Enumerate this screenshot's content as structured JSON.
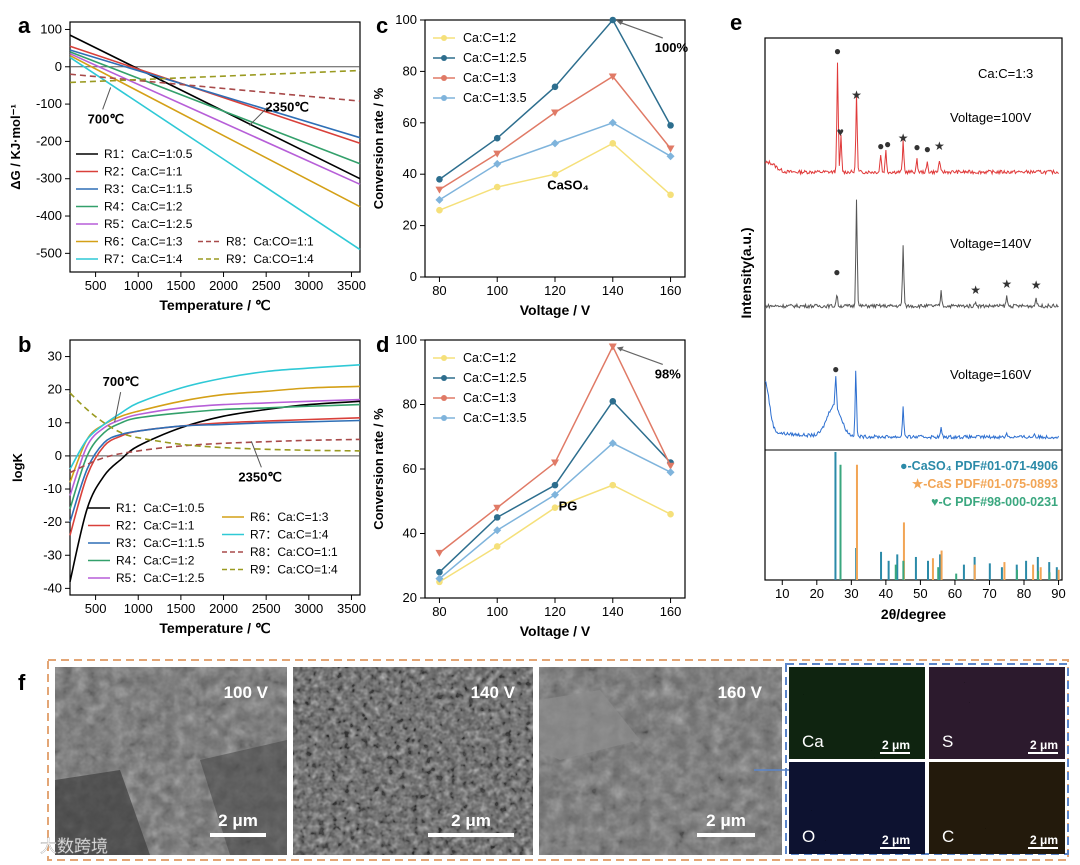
{
  "panel_labels": {
    "a": "a",
    "b": "b",
    "c": "c",
    "d": "d",
    "e": "e",
    "f": "f"
  },
  "chart_data": [
    {
      "id": "a",
      "type": "line",
      "xlabel": "Temperature / ℃",
      "ylabel": "ΔG / KJ·mol⁻¹",
      "xlim": [
        200,
        3600
      ],
      "ylim": [
        -550,
        120
      ],
      "xticks": [
        500,
        1000,
        1500,
        2000,
        2500,
        3000,
        3500
      ],
      "yticks": [
        100,
        0,
        -100,
        -200,
        -300,
        -400,
        -500
      ],
      "series": [
        {
          "name": "R1：Ca:C=1:0.5",
          "label_prefix": "R1",
          "label_ratio": "Ca:C=1:0.5",
          "color": "#000000",
          "dashed": false,
          "x": [
            200,
            3600
          ],
          "y": [
            85,
            -300
          ]
        },
        {
          "name": "R2：Ca:C=1:1",
          "label_prefix": "R2",
          "label_ratio": "Ca:C=1:1",
          "color": "#d9403a",
          "dashed": false,
          "x": [
            200,
            3600
          ],
          "y": [
            55,
            -205
          ]
        },
        {
          "name": "R3：Ca:C=1:1.5",
          "label_prefix": "R3",
          "label_ratio": "Ca:C=1:1.5",
          "color": "#2e6fb6",
          "dashed": false,
          "x": [
            200,
            3600
          ],
          "y": [
            45,
            -190
          ]
        },
        {
          "name": "R4：Ca:C=1:2",
          "label_prefix": "R4",
          "label_ratio": "Ca:C=1:2",
          "color": "#33a06b",
          "dashed": false,
          "x": [
            200,
            3600
          ],
          "y": [
            40,
            -260
          ]
        },
        {
          "name": "R5：Ca:C=1:2.5",
          "label_prefix": "R5",
          "label_ratio": "Ca:C=1:2.5",
          "color": "#b75fd8",
          "dashed": false,
          "x": [
            200,
            3600
          ],
          "y": [
            35,
            -315
          ]
        },
        {
          "name": "R6：Ca:C=1:3",
          "label_prefix": "R6",
          "label_ratio": "Ca:C=1:3",
          "color": "#d4a017",
          "dashed": false,
          "x": [
            200,
            3600
          ],
          "y": [
            30,
            -375
          ]
        },
        {
          "name": "R7：Ca:C=1:4",
          "label_prefix": "R7",
          "label_ratio": "Ca:C=1:4",
          "color": "#2fc9d6",
          "dashed": false,
          "x": [
            200,
            3600
          ],
          "y": [
            25,
            -490
          ]
        },
        {
          "name": "R8：Ca:CO=1:1",
          "label_prefix": "R8",
          "label_ratio": "Ca:CO=1:1",
          "color": "#a84a4a",
          "dashed": true,
          "x": [
            200,
            3600
          ],
          "y": [
            -20,
            -92
          ]
        },
        {
          "name": "R9：Ca:CO=1:4",
          "label_prefix": "R9",
          "label_ratio": "Ca:CO=1:4",
          "color": "#9a9a20",
          "dashed": true,
          "x": [
            200,
            3600
          ],
          "y": [
            -42,
            -10
          ]
        }
      ],
      "annotations": [
        {
          "text": "700℃",
          "x": 700,
          "y": -50
        },
        {
          "text": "2350℃",
          "x": 2350,
          "y": -200
        }
      ]
    },
    {
      "id": "b",
      "type": "line",
      "xlabel": "Temperature / ℃",
      "ylabel": "logK",
      "xlim": [
        200,
        3600
      ],
      "ylim": [
        -42,
        35
      ],
      "xticks": [
        500,
        1000,
        1500,
        2000,
        2500,
        3000,
        3500
      ],
      "yticks": [
        30,
        20,
        10,
        0,
        -10,
        -20,
        -30,
        -40
      ],
      "series": [
        {
          "name": "R1：Ca:C=1:0.5",
          "label_prefix": "R1",
          "label_ratio": "Ca:C=1:0.5",
          "color": "#000000",
          "dashed": false,
          "x": [
            200,
            400,
            600,
            800,
            1000,
            1500,
            2000,
            2500,
            3000,
            3600
          ],
          "y": [
            -38,
            -16,
            -6,
            -1,
            3,
            8.5,
            12,
            14,
            15.5,
            16.5
          ]
        },
        {
          "name": "R2：Ca:C=1:1",
          "label_prefix": "R2",
          "label_ratio": "Ca:C=1:1",
          "color": "#d9403a",
          "dashed": false,
          "x": [
            200,
            400,
            600,
            800,
            1000,
            1500,
            2000,
            2500,
            3000,
            3600
          ],
          "y": [
            -24,
            -6,
            3,
            6,
            7.5,
            9,
            10,
            10.5,
            11,
            11.5
          ]
        },
        {
          "name": "R3：Ca:C=1:1.5",
          "label_prefix": "R3",
          "label_ratio": "Ca:C=1:1.5",
          "color": "#2e6fb6",
          "dashed": false,
          "x": [
            200,
            400,
            600,
            800,
            1000,
            1500,
            2000,
            2500,
            3000,
            3600
          ],
          "y": [
            -20,
            -4,
            4,
            6.5,
            7.5,
            9,
            9.5,
            10,
            10.3,
            10.7
          ]
        },
        {
          "name": "R4：Ca:C=1:2",
          "label_prefix": "R4",
          "label_ratio": "Ca:C=1:2",
          "color": "#33a06b",
          "dashed": false,
          "x": [
            200,
            400,
            600,
            800,
            1000,
            1500,
            2000,
            2500,
            3000,
            3600
          ],
          "y": [
            -16,
            0,
            7,
            10,
            11.5,
            13,
            14,
            14.5,
            15,
            15.5
          ]
        },
        {
          "name": "R5：Ca:C=1:2.5",
          "label_prefix": "R5",
          "label_ratio": "Ca:C=1:2.5",
          "color": "#b75fd8",
          "dashed": false,
          "x": [
            200,
            400,
            600,
            800,
            1000,
            1500,
            2000,
            2500,
            3000,
            3600
          ],
          "y": [
            -12,
            3,
            8.5,
            11,
            12.5,
            14.5,
            15.5,
            16,
            16.5,
            17
          ]
        },
        {
          "name": "R6：Ca:C=1:3",
          "label_prefix": "R6",
          "label_ratio": "Ca:C=1:3",
          "color": "#d4a017",
          "dashed": false,
          "x": [
            200,
            400,
            600,
            800,
            1000,
            1500,
            2000,
            2500,
            3000,
            3600
          ],
          "y": [
            -8,
            5,
            9.5,
            12,
            13.5,
            16.5,
            18.5,
            19.5,
            20.5,
            21
          ]
        },
        {
          "name": "R7：Ca:C=1:4",
          "label_prefix": "R7",
          "label_ratio": "Ca:C=1:4",
          "color": "#2fc9d6",
          "dashed": false,
          "x": [
            200,
            400,
            600,
            800,
            1000,
            1500,
            2000,
            2500,
            3000,
            3600
          ],
          "y": [
            -4,
            5,
            9.5,
            13,
            16,
            20.5,
            23.5,
            25.5,
            26.5,
            27.5
          ]
        },
        {
          "name": "R8：Ca:CO=1:1",
          "label_prefix": "R8",
          "label_ratio": "Ca:CO=1:1",
          "color": "#a84a4a",
          "dashed": true,
          "x": [
            200,
            600,
            1000,
            1500,
            2000,
            2500,
            3000,
            3600
          ],
          "y": [
            -5,
            -0.5,
            1.5,
            3,
            3.8,
            4.3,
            4.7,
            5
          ]
        },
        {
          "name": "R9：Ca:CO=1:4",
          "label_prefix": "R9",
          "label_ratio": "Ca:CO=1:4",
          "color": "#9a9a20",
          "dashed": true,
          "x": [
            200,
            400,
            600,
            800,
            1000,
            1500,
            2000,
            2500,
            3000,
            3600
          ],
          "y": [
            19,
            14,
            10,
            7,
            5.5,
            3.5,
            2.5,
            2,
            1.7,
            1.5
          ]
        }
      ],
      "annotations": [
        {
          "text": "700℃",
          "x": 700,
          "y": 9
        },
        {
          "text": "2350℃",
          "x": 2350,
          "y": 5
        }
      ]
    },
    {
      "id": "c",
      "type": "line",
      "xlabel": "Voltage / V",
      "ylabel": "Conversion rate / %",
      "xlim": [
        75,
        165
      ],
      "ylim": [
        0,
        100
      ],
      "xticks": [
        80,
        100,
        120,
        140,
        160
      ],
      "yticks": [
        0,
        20,
        40,
        60,
        80,
        100
      ],
      "inner_label": "CaSO₄",
      "series": [
        {
          "name": "Ca:C=1:2",
          "color": "#f5e07a",
          "marker": "circle",
          "x": [
            80,
            100,
            120,
            140,
            160
          ],
          "y": [
            26,
            35,
            40,
            52,
            32
          ]
        },
        {
          "name": "Ca:C=1:2.5",
          "color": "#2d6e8e",
          "marker": "circle",
          "x": [
            80,
            100,
            120,
            140,
            160
          ],
          "y": [
            38,
            54,
            74,
            100,
            59
          ]
        },
        {
          "name": "Ca:C=1:3",
          "color": "#e07a66",
          "marker": "triangle",
          "x": [
            80,
            100,
            120,
            140,
            160
          ],
          "y": [
            34,
            48,
            64,
            78,
            50
          ]
        },
        {
          "name": "Ca:C=1:3.5",
          "color": "#7fb4dc",
          "marker": "diamond",
          "x": [
            80,
            100,
            120,
            140,
            160
          ],
          "y": [
            30,
            44,
            52,
            60,
            47
          ]
        }
      ],
      "annotations": [
        {
          "text": "100%",
          "x": 140,
          "y": 100
        }
      ]
    },
    {
      "id": "d",
      "type": "line",
      "xlabel": "Voltage / V",
      "ylabel": "Conversion rate / %",
      "xlim": [
        75,
        165
      ],
      "ylim": [
        20,
        100
      ],
      "xticks": [
        80,
        100,
        120,
        140,
        160
      ],
      "yticks": [
        20,
        40,
        60,
        80,
        100
      ],
      "inner_label": "PG",
      "series": [
        {
          "name": "Ca:C=1:2",
          "color": "#f5e07a",
          "marker": "circle",
          "x": [
            80,
            100,
            120,
            140,
            160
          ],
          "y": [
            25,
            36,
            48,
            55,
            46
          ]
        },
        {
          "name": "Ca:C=1:2.5",
          "color": "#2d6e8e",
          "marker": "circle",
          "x": [
            80,
            100,
            120,
            140,
            160
          ],
          "y": [
            28,
            45,
            55,
            81,
            62
          ]
        },
        {
          "name": "Ca:C=1:3",
          "color": "#e07a66",
          "marker": "triangle",
          "x": [
            80,
            100,
            120,
            140,
            160
          ],
          "y": [
            34,
            48,
            62,
            98,
            61
          ]
        },
        {
          "name": "Ca:C=1:3.5",
          "color": "#7fb4dc",
          "marker": "diamond",
          "x": [
            80,
            100,
            120,
            140,
            160
          ],
          "y": [
            26,
            41,
            52,
            68,
            59
          ]
        }
      ],
      "annotations": [
        {
          "text": "98%",
          "x": 140,
          "y": 98
        }
      ]
    },
    {
      "id": "e",
      "type": "line",
      "xlabel": "2θ/degree",
      "ylabel": "Intensity(a.u.)",
      "xlim": [
        5,
        91
      ],
      "xticks": [
        10,
        20,
        30,
        40,
        50,
        60,
        70,
        80,
        90
      ],
      "header_label": "Ca:C=1:3",
      "series": [
        {
          "name": "Voltage=100V",
          "color": "#e03a3a",
          "peaks": [
            [
              26,
              0.9
            ],
            [
              27,
              0.3
            ],
            [
              31.5,
              0.65
            ],
            [
              38.5,
              0.15
            ],
            [
              40,
              0.18
            ],
            [
              45,
              0.25
            ],
            [
              49,
              0.1
            ],
            [
              52,
              0.08
            ],
            [
              55.5,
              0.1
            ]
          ]
        },
        {
          "name": "Voltage=140V",
          "color": "#555555",
          "peaks": [
            [
              25.8,
              0.1
            ],
            [
              31.5,
              0.9
            ],
            [
              45,
              0.5
            ],
            [
              56,
              0.12
            ],
            [
              66,
              0.04
            ],
            [
              75,
              0.08
            ],
            [
              83.5,
              0.07
            ]
          ]
        },
        {
          "name": "Voltage=160V",
          "color": "#2d6fd0",
          "peaks": [
            [
              25.5,
              0.28
            ],
            [
              31.3,
              0.6
            ],
            [
              45,
              0.28
            ],
            [
              56,
              0.08
            ],
            [
              75,
              0.04
            ],
            [
              83,
              0.03
            ]
          ]
        }
      ],
      "references": [
        {
          "name": "●-CaSO₄ PDF#01-071-4906",
          "color": "#2b8aa8",
          "lines": [
            [
              25.4,
              1.0
            ],
            [
              31.4,
              0.25
            ],
            [
              38.6,
              0.22
            ],
            [
              40.8,
              0.15
            ],
            [
              43.3,
              0.2
            ],
            [
              48.7,
              0.18
            ],
            [
              52.2,
              0.15
            ],
            [
              55.7,
              0.2
            ],
            [
              62.6,
              0.12
            ],
            [
              65.7,
              0.18
            ],
            [
              70.1,
              0.13
            ],
            [
              73.6,
              0.1
            ],
            [
              77.9,
              0.12
            ],
            [
              80.6,
              0.15
            ],
            [
              84.0,
              0.18
            ],
            [
              87.3,
              0.14
            ],
            [
              89.5,
              0.1
            ]
          ]
        },
        {
          "name": "★-CaS PDF#01-075-0893",
          "color": "#f2a555",
          "lines": [
            [
              31.4,
              0.9
            ],
            [
              45.0,
              0.45
            ],
            [
              53.4,
              0.17
            ],
            [
              55.9,
              0.23
            ],
            [
              65.5,
              0.12
            ],
            [
              74.1,
              0.14
            ],
            [
              82.4,
              0.12
            ],
            [
              84.6,
              0.1
            ],
            [
              89.8,
              0.08
            ]
          ]
        },
        {
          "name": "♥-C PDF#98-000-0231",
          "color": "#3aa77f",
          "lines": [
            [
              26.4,
              0.9
            ],
            [
              42.4,
              0.12
            ],
            [
              44.6,
              0.15
            ],
            [
              54.7,
              0.1
            ],
            [
              59.9,
              0.05
            ],
            [
              77.5,
              0.08
            ],
            [
              83.6,
              0.07
            ],
            [
              86.9,
              0.06
            ]
          ]
        }
      ]
    }
  ],
  "sem": {
    "panels": [
      {
        "voltage_label": "100 V",
        "scale_label": "2 μm"
      },
      {
        "voltage_label": "140 V",
        "scale_label": "2 μm"
      },
      {
        "voltage_label": "160 V",
        "scale_label": "2 μm"
      }
    ],
    "eds": [
      {
        "element": "Ca",
        "scale_label": "2 μm",
        "color": "#3f9a46"
      },
      {
        "element": "S",
        "scale_label": "2 μm",
        "color": "#a26aa8"
      },
      {
        "element": "O",
        "scale_label": "2 μm",
        "color": "#3f55c8"
      },
      {
        "element": "C",
        "scale_label": "2 μm",
        "color": "#b98a44"
      }
    ],
    "watermark": "大数跨境"
  }
}
